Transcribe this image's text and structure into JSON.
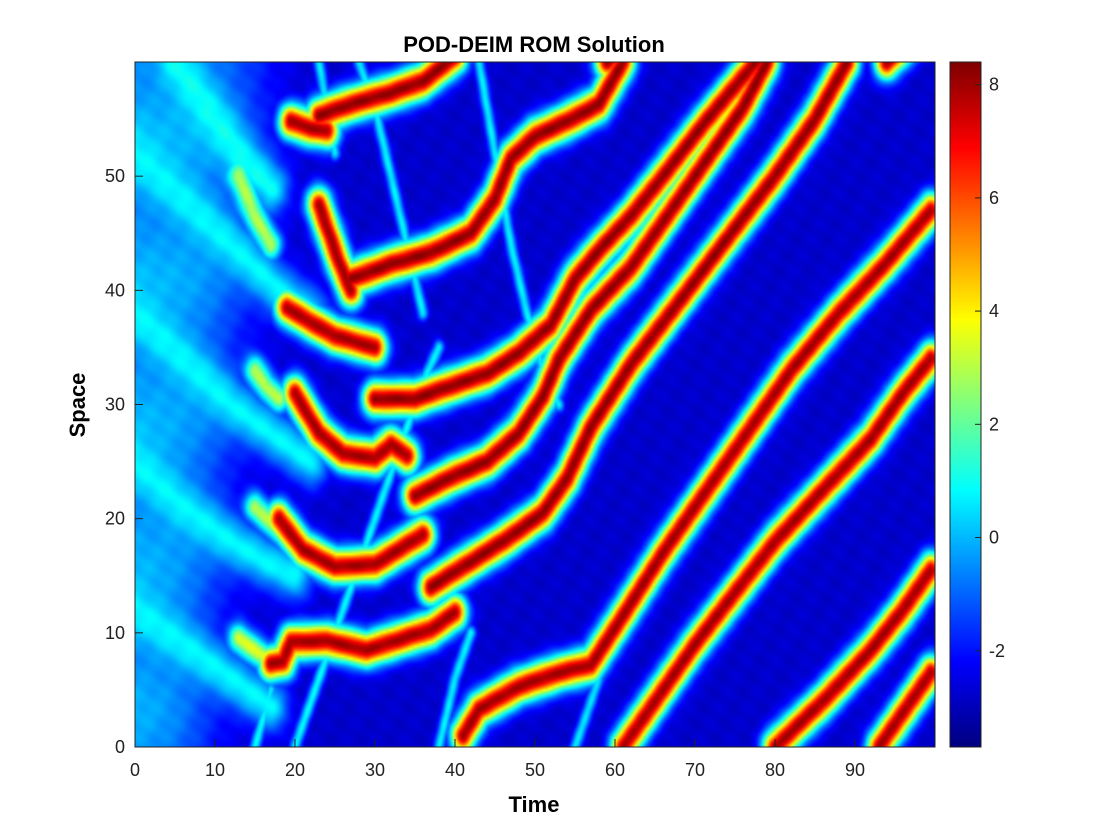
{
  "chart_data": {
    "type": "heatmap",
    "title": "POD-DEIM ROM Solution",
    "xlabel": "Time",
    "ylabel": "Space",
    "xlim": [
      0,
      100
    ],
    "ylim": [
      0,
      60
    ],
    "xticks": [
      "0",
      "10",
      "20",
      "30",
      "40",
      "50",
      "60",
      "70",
      "80",
      "90"
    ],
    "yticks": [
      "0",
      "10",
      "20",
      "30",
      "40",
      "50"
    ],
    "colorbar": {
      "colormap": "jet",
      "range": [
        -3.7,
        8.4
      ],
      "ticks": [
        "-2",
        "0",
        "2",
        "4",
        "6",
        "8"
      ]
    },
    "background_value": -2.8,
    "features": [
      {
        "kind": "ridge",
        "peak": 8.0,
        "width": 1.05,
        "points": [
          [
            17,
            7.3
          ],
          [
            18.5,
            7.5
          ],
          [
            19.5,
            9.2
          ],
          [
            24,
            9.3
          ],
          [
            29,
            8.5
          ],
          [
            33,
            9.4
          ],
          [
            37,
            10.3
          ],
          [
            40,
            11.8
          ]
        ]
      },
      {
        "kind": "ridge",
        "peak": 8.0,
        "width": 1.05,
        "points": [
          [
            18,
            20
          ],
          [
            21,
            17.3
          ],
          [
            25,
            15.8
          ],
          [
            30,
            16
          ],
          [
            33,
            17.3
          ],
          [
            36,
            18.6
          ]
        ]
      },
      {
        "kind": "ridge",
        "peak": 8.0,
        "width": 1.05,
        "points": [
          [
            20,
            31
          ],
          [
            23,
            27.5
          ],
          [
            26,
            25.7
          ],
          [
            30,
            25.3
          ],
          [
            32,
            26.5
          ],
          [
            34,
            25.5
          ]
        ]
      },
      {
        "kind": "ridge",
        "peak": 8.0,
        "width": 1.05,
        "points": [
          [
            19,
            38.5
          ],
          [
            22,
            37.2
          ],
          [
            25,
            36
          ],
          [
            30,
            35
          ]
        ]
      },
      {
        "kind": "ridge",
        "peak": 8.0,
        "width": 1.05,
        "points": [
          [
            19.5,
            54.8
          ],
          [
            22,
            54.2
          ],
          [
            24,
            54
          ]
        ]
      },
      {
        "kind": "ridge",
        "peak": 8.0,
        "width": 1.05,
        "points": [
          [
            23,
            47.5
          ],
          [
            25.5,
            42.5
          ],
          [
            27,
            40
          ]
        ]
      },
      {
        "kind": "ridge",
        "peak": 8.2,
        "width": 1.05,
        "points": [
          [
            35,
            22
          ],
          [
            40,
            23.8
          ],
          [
            44,
            25
          ],
          [
            48,
            27.5
          ],
          [
            51,
            30.7
          ],
          [
            53,
            34
          ],
          [
            57,
            38.3
          ],
          [
            62,
            42
          ],
          [
            67,
            47
          ],
          [
            71,
            51
          ],
          [
            76,
            56
          ],
          [
            79,
            60
          ]
        ]
      },
      {
        "kind": "ridge",
        "peak": 8.2,
        "width": 1.05,
        "points": [
          [
            37,
            14
          ],
          [
            41,
            15.8
          ],
          [
            46,
            18
          ],
          [
            51,
            20.5
          ],
          [
            54,
            23.5
          ],
          [
            57,
            28
          ],
          [
            62,
            33.5
          ],
          [
            68,
            39
          ],
          [
            74,
            44.5
          ],
          [
            80,
            50
          ],
          [
            85,
            55
          ],
          [
            89,
            60
          ]
        ]
      },
      {
        "kind": "ridge",
        "peak": 8.2,
        "width": 1.05,
        "points": [
          [
            30,
            30.5
          ],
          [
            35,
            30.5
          ],
          [
            39,
            31.5
          ],
          [
            44,
            32.7
          ],
          [
            48,
            34.5
          ],
          [
            52,
            37
          ],
          [
            55,
            41
          ],
          [
            58,
            43.5
          ],
          [
            62,
            46.5
          ],
          [
            66,
            50
          ],
          [
            71,
            54.5
          ],
          [
            77,
            59.5
          ],
          [
            80,
            62
          ]
        ]
      },
      {
        "kind": "ridge",
        "peak": 8.2,
        "width": 1.05,
        "points": [
          [
            27,
            41
          ],
          [
            32,
            42.3
          ],
          [
            37,
            43.3
          ],
          [
            42,
            45
          ],
          [
            45,
            48
          ],
          [
            47,
            51.5
          ],
          [
            50,
            53.5
          ],
          [
            54,
            54.8
          ],
          [
            58,
            56.3
          ],
          [
            61,
            60
          ]
        ]
      },
      {
        "kind": "ridge",
        "peak": 8.2,
        "width": 1.05,
        "points": [
          [
            23,
            55.3
          ],
          [
            27,
            56.3
          ],
          [
            32,
            57.3
          ],
          [
            36,
            58.3
          ],
          [
            40,
            60.5
          ]
        ]
      },
      {
        "kind": "ridge",
        "peak": 8.0,
        "width": 1.05,
        "points": [
          [
            41,
            1
          ],
          [
            43,
            3.3
          ],
          [
            48,
            5.3
          ],
          [
            53,
            6.5
          ],
          [
            57,
            7.2
          ],
          [
            61,
            11.5
          ],
          [
            66,
            17
          ],
          [
            72,
            23
          ],
          [
            77,
            28
          ],
          [
            82,
            33
          ],
          [
            88,
            38
          ],
          [
            94,
            42.5
          ],
          [
            99.5,
            47
          ]
        ]
      },
      {
        "kind": "ridge",
        "peak": 8.0,
        "width": 1.05,
        "points": [
          [
            61,
            0
          ],
          [
            65,
            4
          ],
          [
            70,
            9
          ],
          [
            75,
            13.5
          ],
          [
            80,
            18
          ],
          [
            86,
            22.5
          ],
          [
            92,
            27
          ],
          [
            96,
            31
          ],
          [
            99.5,
            34
          ]
        ]
      },
      {
        "kind": "ridge",
        "peak": 8.0,
        "width": 1.05,
        "points": [
          [
            80,
            0
          ],
          [
            86,
            4
          ],
          [
            92,
            8.5
          ],
          [
            96,
            12
          ],
          [
            99.5,
            15.5
          ]
        ]
      },
      {
        "kind": "ridge",
        "peak": 8.0,
        "width": 1.05,
        "points": [
          [
            93,
            0
          ],
          [
            97,
            4
          ],
          [
            99.5,
            6.5
          ]
        ]
      },
      {
        "kind": "ridge",
        "peak": 8.2,
        "width": 1.05,
        "points": [
          [
            59,
            60
          ],
          [
            62,
            62
          ]
        ]
      },
      {
        "kind": "ridge",
        "peak": 8.2,
        "width": 1.05,
        "points": [
          [
            94,
            60
          ],
          [
            97,
            62
          ]
        ]
      },
      {
        "kind": "ridge",
        "peak": 0.8,
        "width": 0.45,
        "points": [
          [
            20,
            0
          ],
          [
            23,
            6
          ],
          [
            27,
            14
          ],
          [
            31,
            22
          ],
          [
            34,
            28
          ],
          [
            36,
            32
          ],
          [
            38,
            35
          ]
        ]
      },
      {
        "kind": "ridge",
        "peak": 0.8,
        "width": 0.45,
        "points": [
          [
            15,
            0
          ],
          [
            17,
            5
          ]
        ]
      },
      {
        "kind": "ridge",
        "peak": 0.7,
        "width": 0.45,
        "points": [
          [
            28,
            60
          ],
          [
            30,
            56
          ],
          [
            32,
            50
          ],
          [
            34,
            44
          ],
          [
            36,
            38
          ]
        ]
      },
      {
        "kind": "ridge",
        "peak": 0.7,
        "width": 0.45,
        "points": [
          [
            38,
            0
          ],
          [
            40,
            6
          ],
          [
            42,
            10
          ]
        ]
      },
      {
        "kind": "ridge",
        "peak": 0.7,
        "width": 0.45,
        "points": [
          [
            43,
            60
          ],
          [
            45,
            52
          ],
          [
            47,
            44
          ],
          [
            49,
            38
          ],
          [
            51,
            33
          ],
          [
            53,
            30
          ]
        ]
      },
      {
        "kind": "ridge",
        "peak": 0.6,
        "width": 0.45,
        "points": [
          [
            55,
            0
          ],
          [
            58,
            6
          ]
        ]
      },
      {
        "kind": "ridge",
        "peak": 0.6,
        "width": 0.45,
        "points": [
          [
            23,
            60
          ],
          [
            25,
            52
          ]
        ]
      },
      {
        "kind": "wave",
        "peak": 0.8,
        "width": 1.5,
        "points": [
          [
            0,
            52
          ],
          [
            6,
            48
          ],
          [
            12,
            44
          ],
          [
            18,
            40
          ],
          [
            22,
            38
          ]
        ]
      },
      {
        "kind": "wave",
        "peak": 0.8,
        "width": 1.5,
        "points": [
          [
            0,
            38
          ],
          [
            6,
            34
          ],
          [
            12,
            30
          ],
          [
            18,
            27
          ],
          [
            22,
            25
          ]
        ]
      },
      {
        "kind": "wave",
        "peak": 0.8,
        "width": 1.5,
        "points": [
          [
            0,
            25
          ],
          [
            6,
            21
          ],
          [
            12,
            18
          ],
          [
            17,
            16
          ],
          [
            20,
            15
          ]
        ]
      },
      {
        "kind": "wave",
        "peak": 0.8,
        "width": 1.5,
        "points": [
          [
            0,
            12
          ],
          [
            6,
            9
          ],
          [
            12,
            6
          ],
          [
            17,
            3.5
          ]
        ]
      },
      {
        "kind": "wave",
        "peak": 1.0,
        "width": 1.5,
        "points": [
          [
            5,
            60
          ],
          [
            9,
            56
          ],
          [
            13,
            52
          ],
          [
            17,
            49
          ]
        ]
      },
      {
        "kind": "wave",
        "peak": 3.5,
        "width": 0.9,
        "points": [
          [
            13,
            9.5
          ],
          [
            15.5,
            8.2
          ],
          [
            17,
            7.5
          ]
        ]
      },
      {
        "kind": "wave",
        "peak": 3.0,
        "width": 0.9,
        "points": [
          [
            13,
            50
          ],
          [
            15,
            46.5
          ],
          [
            17,
            44
          ]
        ]
      },
      {
        "kind": "wave",
        "peak": 3.0,
        "width": 0.9,
        "points": [
          [
            15,
            21
          ],
          [
            16.5,
            20
          ],
          [
            18,
            19
          ]
        ]
      },
      {
        "kind": "wave",
        "peak": 3.0,
        "width": 0.9,
        "points": [
          [
            15,
            33
          ],
          [
            16.5,
            31.5
          ],
          [
            18,
            30.5
          ]
        ]
      }
    ]
  }
}
